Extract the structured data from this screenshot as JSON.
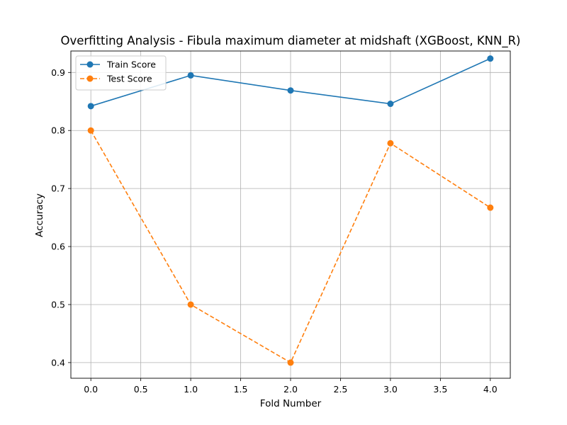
{
  "chart_data": {
    "type": "line",
    "title": "Overfitting Analysis - Fibula maximum diameter at midshaft (XGBoost, KNN_R)",
    "xlabel": "Fold Number",
    "ylabel": "Accuracy",
    "xlim": [
      -0.2,
      4.2
    ],
    "ylim": [
      0.373,
      0.937
    ],
    "xticks": [
      0.0,
      0.5,
      1.0,
      1.5,
      2.0,
      2.5,
      3.0,
      3.5,
      4.0
    ],
    "xtick_labels": [
      "0.0",
      "0.5",
      "1.0",
      "1.5",
      "2.0",
      "2.5",
      "3.0",
      "3.5",
      "4.0"
    ],
    "yticks": [
      0.4,
      0.5,
      0.6,
      0.7,
      0.8,
      0.9
    ],
    "ytick_labels": [
      "0.4",
      "0.5",
      "0.6",
      "0.7",
      "0.8",
      "0.9"
    ],
    "grid": true,
    "legend_position": "top-left",
    "x": [
      0,
      1,
      2,
      3,
      4
    ],
    "series": [
      {
        "name": "Train Score",
        "values": [
          0.842,
          0.895,
          0.869,
          0.846,
          0.924
        ],
        "color": "#1f77b4",
        "line_style": "solid",
        "marker": "circle"
      },
      {
        "name": "Test Score",
        "values": [
          0.8,
          0.5,
          0.4,
          0.778,
          0.667
        ],
        "color": "#ff7f0e",
        "line_style": "dashed",
        "marker": "circle"
      }
    ]
  }
}
